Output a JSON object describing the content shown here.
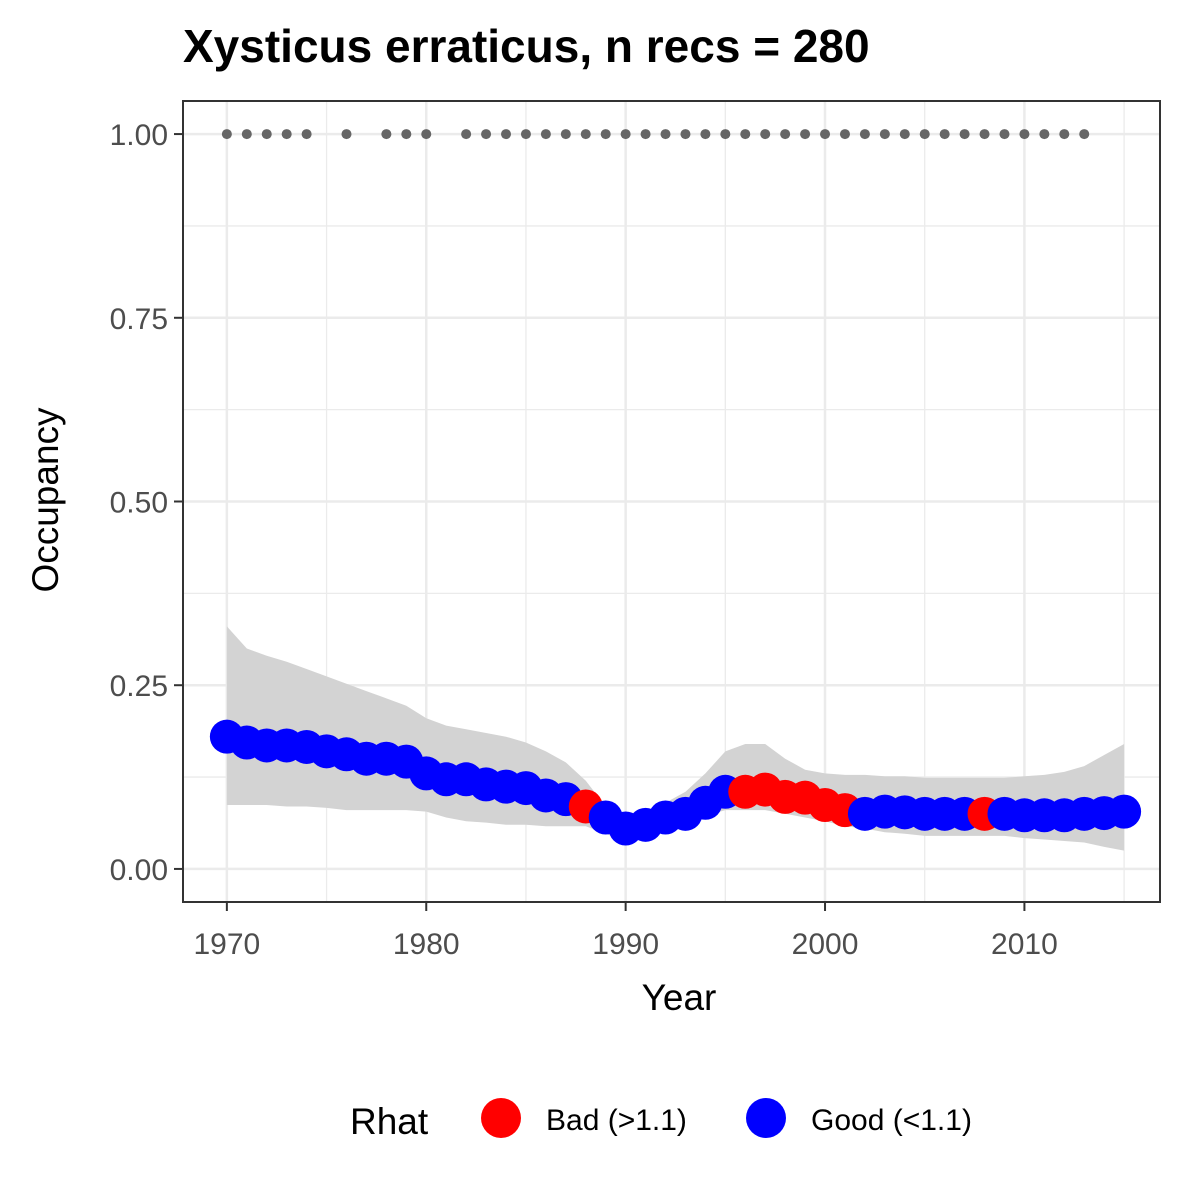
{
  "chart_data": {
    "type": "scatter",
    "title": "Xysticus erraticus, n recs = 280",
    "xlabel": "Year",
    "ylabel": "Occupancy",
    "xlim": [
      1967.8,
      2016.8
    ],
    "ylim": [
      -0.045,
      1.045
    ],
    "x_ticks": [
      1970,
      1980,
      1990,
      2000,
      2010
    ],
    "x_tick_labels": [
      "1970",
      "1980",
      "1990",
      "2000",
      "2010"
    ],
    "y_ticks": [
      0,
      0.25,
      0.5,
      0.75,
      1.0
    ],
    "y_tick_labels": [
      "0.00",
      "0.25",
      "0.50",
      "0.75",
      "1.00"
    ],
    "grid": true,
    "legend": {
      "title": "Rhat",
      "position": "bottom",
      "entries": [
        {
          "label": "Bad (>1.1)",
          "color": "#ff0000"
        },
        {
          "label": "Good (<1.1)",
          "color": "#0000ff"
        }
      ]
    },
    "colors": {
      "bad": "#ff0000",
      "good": "#0000ff",
      "ribbon": "#d3d3d3",
      "records": "#666666"
    },
    "years": [
      1970,
      1971,
      1972,
      1973,
      1974,
      1975,
      1976,
      1977,
      1978,
      1979,
      1980,
      1981,
      1982,
      1983,
      1984,
      1985,
      1986,
      1987,
      1988,
      1989,
      1990,
      1991,
      1992,
      1993,
      1994,
      1995,
      1996,
      1997,
      1998,
      1999,
      2000,
      2001,
      2002,
      2003,
      2004,
      2005,
      2006,
      2007,
      2008,
      2009,
      2010,
      2011,
      2012,
      2013,
      2014,
      2015
    ],
    "occupancy": [
      0.18,
      0.172,
      0.168,
      0.168,
      0.166,
      0.16,
      0.156,
      0.15,
      0.15,
      0.146,
      0.13,
      0.122,
      0.122,
      0.115,
      0.112,
      0.11,
      0.1,
      0.095,
      0.085,
      0.07,
      0.055,
      0.06,
      0.07,
      0.075,
      0.09,
      0.105,
      0.105,
      0.108,
      0.098,
      0.097,
      0.087,
      0.08,
      0.075,
      0.078,
      0.077,
      0.075,
      0.075,
      0.075,
      0.075,
      0.075,
      0.073,
      0.073,
      0.073,
      0.075,
      0.076,
      0.078
    ],
    "rhat_status": [
      "good",
      "good",
      "good",
      "good",
      "good",
      "good",
      "good",
      "good",
      "good",
      "good",
      "good",
      "good",
      "good",
      "good",
      "good",
      "good",
      "good",
      "good",
      "bad",
      "good",
      "good",
      "good",
      "good",
      "good",
      "good",
      "good",
      "bad",
      "bad",
      "bad",
      "bad",
      "bad",
      "bad",
      "good",
      "good",
      "good",
      "good",
      "good",
      "good",
      "bad",
      "good",
      "good",
      "good",
      "good",
      "good",
      "good",
      "good"
    ],
    "lower_ci": [
      0.087,
      0.087,
      0.087,
      0.085,
      0.085,
      0.083,
      0.08,
      0.08,
      0.08,
      0.08,
      0.078,
      0.07,
      0.065,
      0.063,
      0.06,
      0.06,
      0.058,
      0.058,
      0.058,
      0.048,
      0.037,
      0.045,
      0.055,
      0.06,
      0.072,
      0.08,
      0.08,
      0.08,
      0.075,
      0.07,
      0.065,
      0.058,
      0.055,
      0.05,
      0.048,
      0.045,
      0.045,
      0.045,
      0.045,
      0.045,
      0.042,
      0.04,
      0.038,
      0.036,
      0.03,
      0.025
    ],
    "upper_ci": [
      0.33,
      0.3,
      0.29,
      0.282,
      0.272,
      0.262,
      0.252,
      0.242,
      0.232,
      0.222,
      0.205,
      0.195,
      0.19,
      0.185,
      0.18,
      0.172,
      0.16,
      0.145,
      0.12,
      0.085,
      0.068,
      0.075,
      0.09,
      0.105,
      0.13,
      0.16,
      0.17,
      0.17,
      0.15,
      0.135,
      0.13,
      0.128,
      0.128,
      0.126,
      0.126,
      0.124,
      0.124,
      0.124,
      0.124,
      0.124,
      0.126,
      0.128,
      0.132,
      0.14,
      0.155,
      0.17
    ],
    "record_years": [
      1970,
      1971,
      1972,
      1973,
      1974,
      1976,
      1978,
      1979,
      1980,
      1982,
      1983,
      1984,
      1985,
      1986,
      1987,
      1988,
      1989,
      1990,
      1991,
      1992,
      1993,
      1994,
      1995,
      1996,
      1997,
      1998,
      1999,
      2000,
      2001,
      2002,
      2003,
      2004,
      2005,
      2006,
      2007,
      2008,
      2009,
      2010,
      2011,
      2012,
      2013
    ],
    "record_value": 1.0
  }
}
